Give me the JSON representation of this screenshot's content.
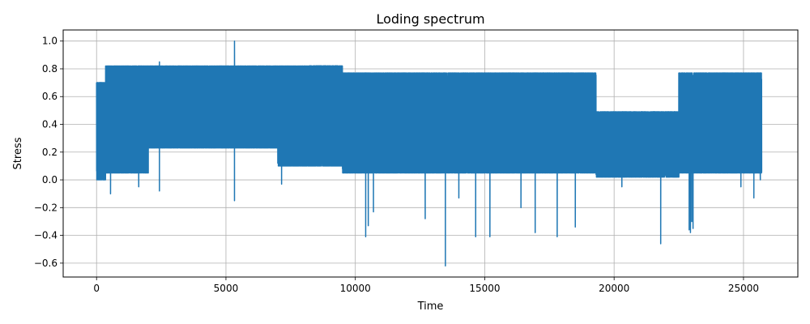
{
  "chart_data": {
    "type": "line",
    "title": "Loding spectrum",
    "xlabel": "Time",
    "ylabel": "Stress",
    "xlim": [
      -1290,
      27100
    ],
    "ylim": [
      -0.7,
      1.08
    ],
    "xticks": [
      0,
      5000,
      10000,
      15000,
      20000,
      25000
    ],
    "xtick_labels": [
      "0",
      "5000",
      "10000",
      "15000",
      "20000",
      "25000"
    ],
    "yticks": [
      -0.6,
      -0.4,
      -0.2,
      0.0,
      0.2,
      0.4,
      0.6,
      0.8,
      1.0
    ],
    "ytick_labels": [
      "−0.6",
      "−0.4",
      "−0.2",
      "0.0",
      "0.2",
      "0.4",
      "0.6",
      "0.8",
      "1.0"
    ],
    "grid": true,
    "series": [
      {
        "color": "#1f77b4",
        "segments": [
          {
            "x_start": 0,
            "x_end": 350,
            "low": 0.0,
            "high": 0.7
          },
          {
            "x_start": 350,
            "x_end": 2000,
            "low": 0.05,
            "high": 0.82
          },
          {
            "x_start": 2000,
            "x_end": 7000,
            "low": 0.23,
            "high": 0.82
          },
          {
            "x_start": 7000,
            "x_end": 9500,
            "low": 0.1,
            "high": 0.82
          },
          {
            "x_start": 9500,
            "x_end": 12000,
            "low": 0.05,
            "high": 0.77
          },
          {
            "x_start": 12000,
            "x_end": 16000,
            "low": 0.05,
            "high": 0.77
          },
          {
            "x_start": 16000,
            "x_end": 19300,
            "low": 0.05,
            "high": 0.77
          },
          {
            "x_start": 19300,
            "x_end": 22500,
            "low": 0.02,
            "high": 0.49
          },
          {
            "x_start": 22500,
            "x_end": 25700,
            "low": 0.05,
            "high": 0.77
          }
        ],
        "spikes": [
          {
            "x": 540,
            "y": -0.1
          },
          {
            "x": 1630,
            "y": -0.05
          },
          {
            "x": 2430,
            "y": 0.85
          },
          {
            "x": 2430,
            "y": -0.08
          },
          {
            "x": 5330,
            "y": 1.0
          },
          {
            "x": 5330,
            "y": -0.15
          },
          {
            "x": 7150,
            "y": -0.03
          },
          {
            "x": 10400,
            "y": -0.41
          },
          {
            "x": 10500,
            "y": -0.33
          },
          {
            "x": 10700,
            "y": -0.23
          },
          {
            "x": 12700,
            "y": -0.28
          },
          {
            "x": 13480,
            "y": -0.62
          },
          {
            "x": 14000,
            "y": -0.13
          },
          {
            "x": 14650,
            "y": -0.41
          },
          {
            "x": 15200,
            "y": -0.41
          },
          {
            "x": 16400,
            "y": -0.2
          },
          {
            "x": 16950,
            "y": -0.38
          },
          {
            "x": 17800,
            "y": -0.41
          },
          {
            "x": 18500,
            "y": -0.34
          },
          {
            "x": 19300,
            "y": 0.75
          },
          {
            "x": 20300,
            "y": -0.05
          },
          {
            "x": 21800,
            "y": -0.46
          },
          {
            "x": 22900,
            "y": -0.36
          },
          {
            "x": 22950,
            "y": -0.38
          },
          {
            "x": 23000,
            "y": -0.3
          },
          {
            "x": 23050,
            "y": -0.35
          },
          {
            "x": 24900,
            "y": -0.05
          },
          {
            "x": 25400,
            "y": -0.13
          },
          {
            "x": 25650,
            "y": 0.0
          }
        ]
      }
    ]
  }
}
